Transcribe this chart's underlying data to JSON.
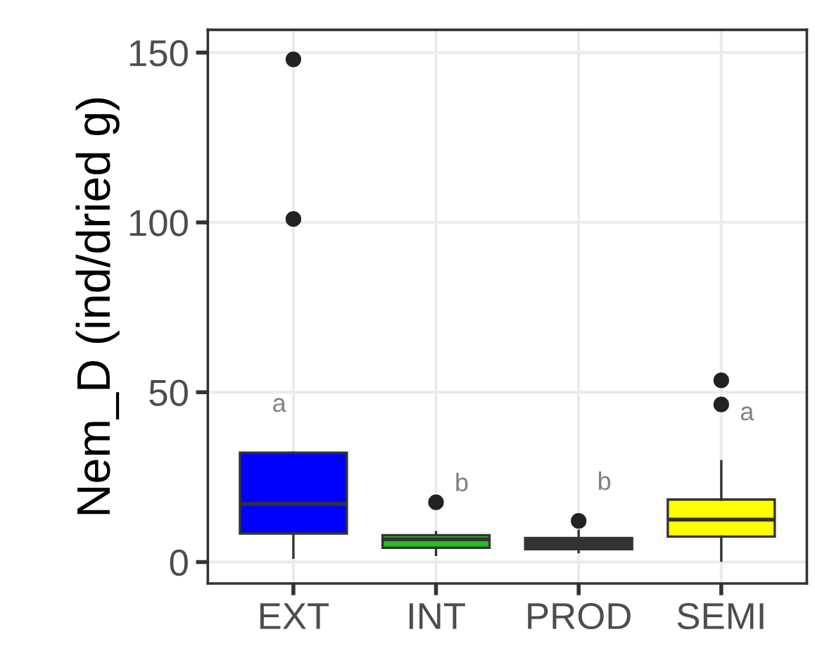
{
  "chart_data": {
    "type": "box",
    "ylabel": "Nem_D (ind/dried g)",
    "categories": [
      "EXT",
      "INT",
      "PROD",
      "SEMI"
    ],
    "colors": [
      "#0000ff",
      "#22c022",
      "#333333",
      "#ffff00"
    ],
    "boxes": [
      {
        "low": 1.3,
        "q1": 8.4,
        "median": 17.1,
        "q3": 32.2,
        "high": 32.2,
        "outliers": [
          148,
          101
        ]
      },
      {
        "low": 2.1,
        "q1": 4.2,
        "median": 6.7,
        "q3": 7.9,
        "high": 8.8,
        "outliers": [
          17.6
        ]
      },
      {
        "low": 2.9,
        "q1": 3.8,
        "median": 5.4,
        "q3": 7.1,
        "high": 9.2,
        "outliers": [
          12.1
        ]
      },
      {
        "low": 0.4,
        "q1": 7.5,
        "median": 12.5,
        "q3": 18.4,
        "high": 29.7,
        "outliers": [
          53.5,
          46.4
        ]
      }
    ],
    "annotations": [
      "a",
      "b",
      "b",
      "a"
    ],
    "ylim": [
      -6.3,
      156.7
    ],
    "yticks": [
      0,
      50,
      100,
      150
    ],
    "grid": true
  }
}
